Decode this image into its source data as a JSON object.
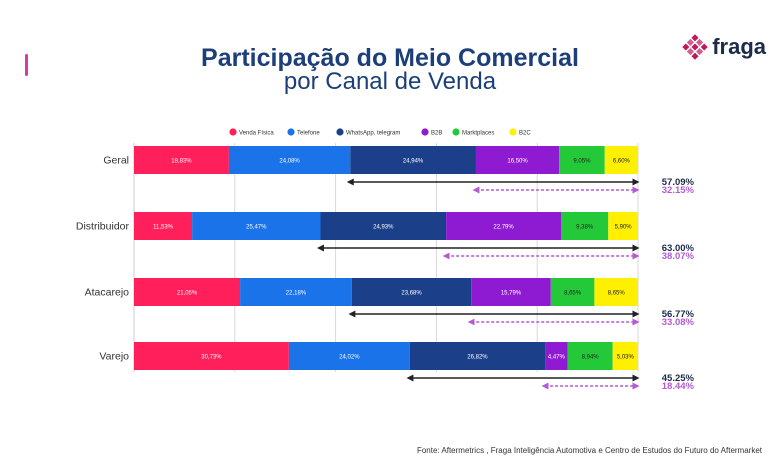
{
  "title_line1": "Participação do Meio Comercial",
  "title_line2": "por Canal de Venda",
  "logo": {
    "text": "fraga",
    "icon": "diamond-grid-icon",
    "color": "#c2185b"
  },
  "source": "Fonte: Aftermetrics , Fraga Inteligência Automotiva e Centro de Estudos do Futuro do Aftermarket",
  "colors": {
    "accent": "#d63aa6",
    "title": "#1c3f7a",
    "arrow_dark": "#222222",
    "arrow_purple": "#b45ad2"
  },
  "chart_data": {
    "type": "bar",
    "orientation": "horizontal",
    "stacked": true,
    "legend_position": "top",
    "grid": true,
    "categories": [
      "Geral",
      "Distribuidor",
      "Atacarejo",
      "Varejo"
    ],
    "series": [
      {
        "name": "Venda Física",
        "color": "#ff1f5a",
        "values": [
          18.83,
          11.53,
          21.05,
          30.73
        ],
        "labels": [
          "18,83%",
          "11,53%",
          "21,05%",
          "30,73%"
        ]
      },
      {
        "name": "Telefone",
        "color": "#1a73e8",
        "values": [
          24.08,
          25.47,
          22.18,
          24.02
        ],
        "labels": [
          "24,08%",
          "25,47%",
          "22,18%",
          "24,02%"
        ]
      },
      {
        "name": "WhatsApp, telegram",
        "color": "#1c3f8a",
        "values": [
          24.94,
          24.93,
          23.68,
          26.82
        ],
        "labels": [
          "24,94%",
          "24,93%",
          "23,68%",
          "26,82%"
        ]
      },
      {
        "name": "B2B",
        "color": "#8e1bd1",
        "values": [
          16.5,
          22.79,
          15.79,
          4.47
        ],
        "labels": [
          "16,50%",
          "22,79%",
          "15,79%",
          "4,47%"
        ]
      },
      {
        "name": "Marktplaces",
        "color": "#24c93a",
        "values": [
          9.05,
          9.38,
          8.65,
          8.94
        ],
        "labels": [
          "9,05%",
          "9,38%",
          "8,65%",
          "8,94%"
        ]
      },
      {
        "name": "B2C",
        "color": "#ffef00",
        "values": [
          6.6,
          5.9,
          8.65,
          5.03
        ],
        "labels": [
          "6,60%",
          "5,90%",
          "8,65%",
          "5,03%"
        ]
      }
    ],
    "annotations": [
      {
        "category": "Geral",
        "digital_total": "57.09%",
        "online_total": "32.15%"
      },
      {
        "category": "Distribuidor",
        "digital_total": "63.00%",
        "online_total": "38.07%"
      },
      {
        "category": "Atacarejo",
        "digital_total": "56.77%",
        "online_total": "33.08%"
      },
      {
        "category": "Varejo",
        "digital_total": "45.25%",
        "online_total": "18.44%"
      }
    ]
  }
}
